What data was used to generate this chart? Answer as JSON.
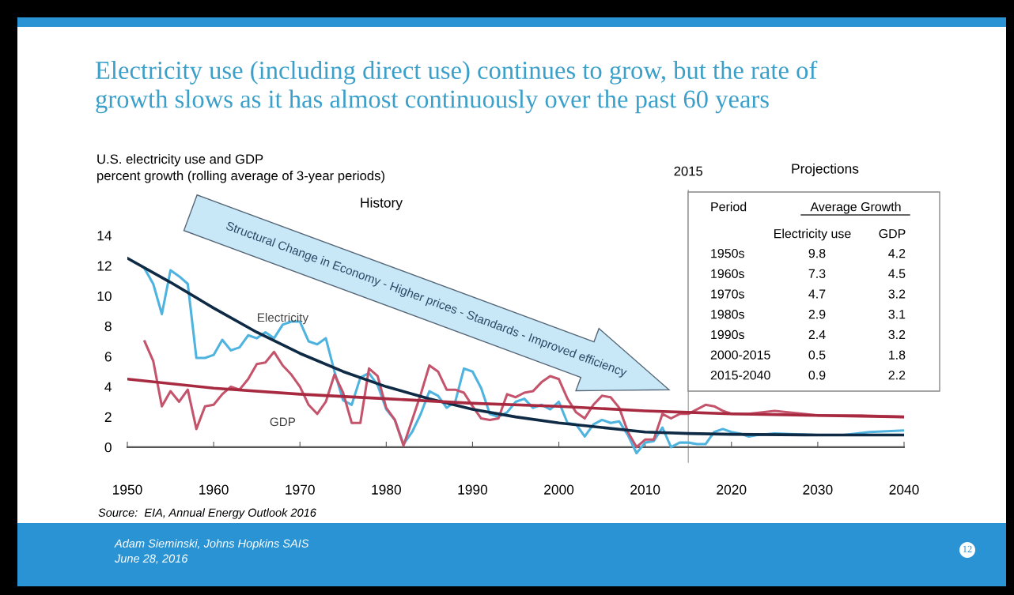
{
  "chart_data": {
    "type": "line",
    "title": "Electricity use (including direct use) continues to grow, but the rate of\ngrowth slows as it has almost continuously over the past 60 years",
    "ylabel": "U.S. electricity use and GDP\npercent growth (rolling average of 3-year periods)",
    "xlim": [
      1950,
      2040
    ],
    "xticks": [
      1950,
      1960,
      1970,
      1980,
      1990,
      2000,
      2010,
      2020,
      2030,
      2040
    ],
    "ylim": [
      -1,
      14
    ],
    "yticks": [
      0,
      2,
      4,
      6,
      8,
      10,
      12,
      14
    ],
    "legend": false,
    "marker": "none",
    "line_style": "solid",
    "series": [
      {
        "name": "Electricity",
        "color": "#4fb3e0",
        "x": [
          1952,
          1953,
          1954,
          1955,
          1956,
          1957,
          1958,
          1959,
          1960,
          1961,
          1962,
          1963,
          1964,
          1965,
          1966,
          1967,
          1968,
          1969,
          1970,
          1971,
          1972,
          1973,
          1974,
          1975,
          1976,
          1977,
          1978,
          1979,
          1980,
          1981,
          1982,
          1983,
          1984,
          1985,
          1986,
          1987,
          1988,
          1989,
          1990,
          1991,
          1992,
          1993,
          1994,
          1995,
          1996,
          1997,
          1998,
          1999,
          2000,
          2001,
          2002,
          2003,
          2004,
          2005,
          2006,
          2007,
          2008,
          2009,
          2010,
          2011,
          2012,
          2013,
          2014,
          2015,
          2016,
          2017,
          2018,
          2019,
          2020,
          2021,
          2022,
          2023,
          2025,
          2030,
          2033,
          2036,
          2040
        ],
        "values": [
          11.8,
          10.8,
          8.8,
          11.7,
          11.3,
          10.8,
          5.9,
          5.9,
          6.1,
          7.1,
          6.4,
          6.6,
          7.4,
          7.2,
          7.6,
          7.2,
          8.1,
          8.3,
          8.3,
          7.0,
          6.8,
          7.2,
          5.0,
          3.1,
          2.8,
          4.6,
          4.9,
          4.1,
          2.5,
          1.8,
          0.2,
          1.0,
          2.2,
          3.7,
          3.4,
          2.6,
          3.0,
          5.2,
          5.0,
          3.9,
          2.2,
          2.0,
          2.3,
          3.0,
          3.2,
          2.6,
          2.8,
          2.5,
          3.0,
          1.6,
          1.5,
          0.7,
          1.5,
          1.8,
          1.6,
          1.7,
          0.8,
          -0.4,
          0.3,
          0.4,
          1.3,
          0.0,
          0.3,
          0.3,
          0.2,
          0.2,
          1.0,
          1.2,
          1.0,
          0.9,
          0.7,
          0.8,
          0.9,
          0.8,
          0.8,
          1.0,
          1.1
        ]
      },
      {
        "name": "GDP",
        "color": "#c4546c",
        "x": [
          1952,
          1953,
          1954,
          1955,
          1956,
          1957,
          1958,
          1959,
          1960,
          1961,
          1962,
          1963,
          1964,
          1965,
          1966,
          1967,
          1968,
          1969,
          1970,
          1971,
          1972,
          1973,
          1974,
          1975,
          1976,
          1977,
          1978,
          1979,
          1980,
          1981,
          1982,
          1983,
          1984,
          1985,
          1986,
          1987,
          1988,
          1989,
          1990,
          1991,
          1992,
          1993,
          1994,
          1995,
          1996,
          1997,
          1998,
          1999,
          2000,
          2001,
          2002,
          2003,
          2004,
          2005,
          2006,
          2007,
          2008,
          2009,
          2010,
          2011,
          2012,
          2013,
          2014,
          2015,
          2016,
          2017,
          2018,
          2019,
          2020,
          2022,
          2025,
          2030,
          2035,
          2040
        ],
        "values": [
          7.0,
          5.7,
          2.7,
          3.7,
          3.0,
          3.8,
          1.2,
          2.7,
          2.8,
          3.5,
          4.0,
          3.8,
          4.5,
          5.5,
          5.6,
          6.3,
          5.4,
          4.8,
          4.0,
          2.8,
          2.2,
          3.0,
          4.8,
          3.6,
          1.6,
          1.6,
          5.2,
          4.7,
          2.6,
          1.8,
          0.1,
          1.8,
          3.5,
          5.4,
          5.0,
          3.8,
          3.8,
          3.6,
          2.7,
          1.9,
          1.8,
          1.9,
          3.5,
          3.3,
          3.6,
          3.7,
          4.3,
          4.7,
          4.5,
          3.2,
          2.3,
          1.9,
          2.8,
          3.4,
          3.3,
          2.6,
          1.0,
          0.0,
          0.5,
          0.5,
          2.2,
          1.9,
          2.2,
          2.2,
          2.5,
          2.8,
          2.7,
          2.4,
          2.2,
          2.2,
          2.4,
          2.1,
          2.1,
          2.0
        ]
      },
      {
        "color": "#0e2a44",
        "x": [
          1950,
          1955,
          1960,
          1965,
          1970,
          1975,
          1980,
          1985,
          1990,
          1995,
          2000,
          2005,
          2010,
          2015,
          2020,
          2030,
          2040
        ],
        "values": [
          12.5,
          10.9,
          9.2,
          7.6,
          6.2,
          5.0,
          4.0,
          3.2,
          2.5,
          2.0,
          1.6,
          1.3,
          1.0,
          0.9,
          0.85,
          0.8,
          0.8
        ]
      },
      {
        "color": "#a82a40",
        "x": [
          1950,
          1960,
          1970,
          1980,
          1990,
          2000,
          2010,
          2015,
          2020,
          2030,
          2040
        ],
        "values": [
          4.5,
          3.9,
          3.5,
          3.2,
          2.9,
          2.7,
          2.4,
          2.3,
          2.2,
          2.1,
          2.0
        ]
      }
    ],
    "ref_lines": [
      {
        "axis": "x",
        "value": 2015,
        "label": "2015",
        "color": "#aaaaaa"
      }
    ],
    "annotations": [
      "History",
      "Projections",
      "Structural Change in Economy - Higher prices - Standards - Improved efficiency",
      "Source:  EIA, Annual Energy Outlook 2016",
      "Adam Sieminski, Johns Hopkins SAIS",
      "June 28, 2016",
      "12",
      "Period",
      "Average Growth",
      "Electricity use",
      "GDP",
      "1950s",
      "9.8",
      "4.2",
      "1960s",
      "7.3",
      "4.5",
      "1970s",
      "4.7",
      "3.2",
      "1980s",
      "2.9",
      "3.1",
      "1990s",
      "2.4",
      "3.2",
      "2000-2015",
      "0.5",
      "1.8",
      "2015-2040",
      "0.9",
      "2.2"
    ]
  }
}
